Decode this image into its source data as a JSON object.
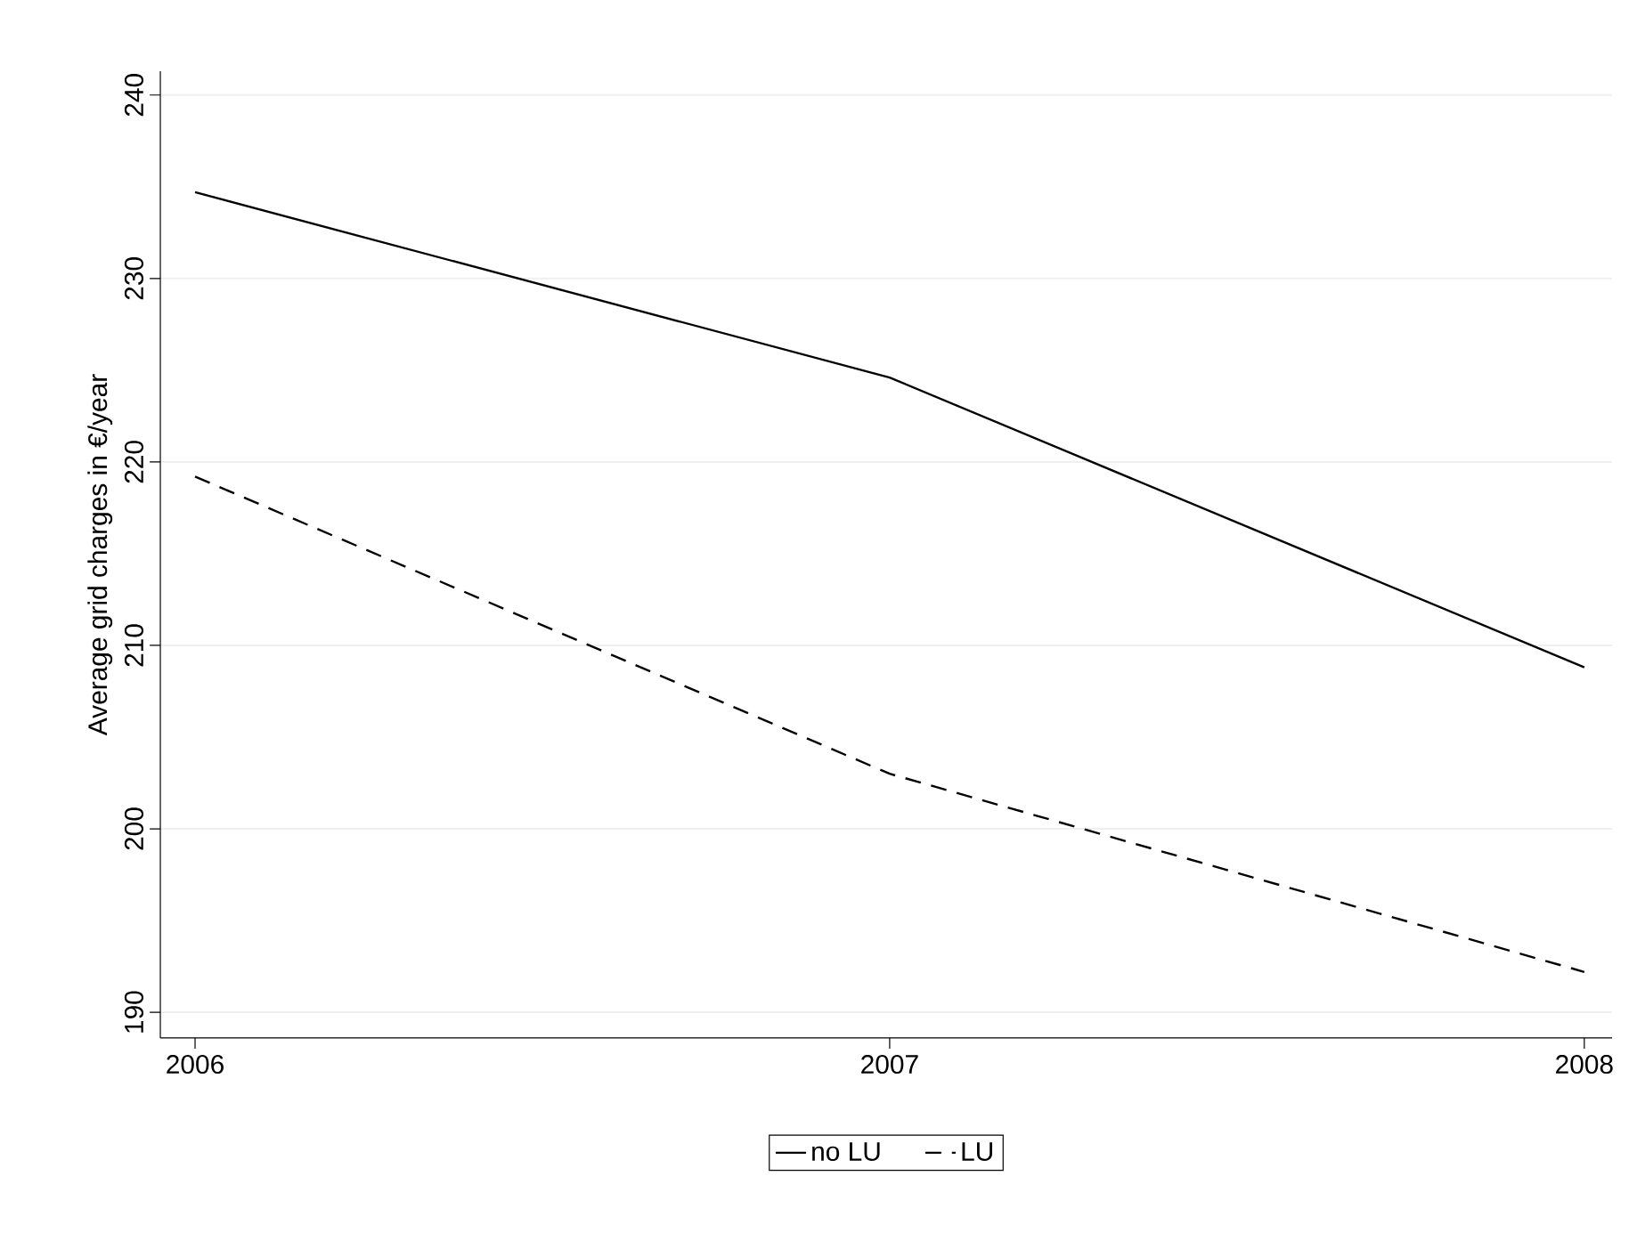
{
  "chart_data": {
    "type": "line",
    "ylabel": "Average grid charges in €/year",
    "x": [
      2006,
      2007,
      2008
    ],
    "series": [
      {
        "name": "no LU",
        "color": "#000000",
        "line_style": "solid",
        "values": [
          234.7,
          224.6,
          208.8
        ]
      },
      {
        "name": "LU",
        "color": "#000000",
        "line_style": "dashed",
        "values": [
          219.2,
          203.0,
          192.2
        ]
      }
    ],
    "xlim": [
      2005.95,
      2008.04
    ],
    "xticks": [
      2006,
      2007,
      2008
    ],
    "ylim": [
      188.6,
      241.3
    ],
    "yticks": [
      190,
      200,
      210,
      220,
      230,
      240
    ],
    "grid": "y",
    "legend": "bottom",
    "marker": "none"
  }
}
